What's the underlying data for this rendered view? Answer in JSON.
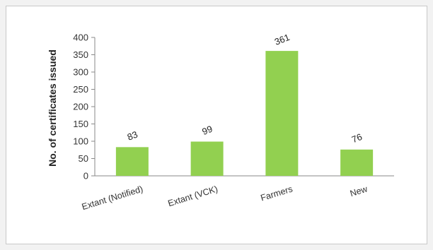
{
  "chart_data": {
    "type": "bar",
    "title": "",
    "xlabel": "",
    "ylabel": "No. of certificates issued",
    "categories": [
      "Extant (Notified)",
      "Extant (VCK)",
      "Farmers",
      "New"
    ],
    "values": [
      83,
      99,
      361,
      76
    ],
    "ylim": [
      0,
      400
    ],
    "yticks": [
      0,
      50,
      100,
      150,
      200,
      250,
      300,
      350,
      400
    ],
    "grid": false,
    "legend": "none",
    "bar_color": "#92d050",
    "data_labels": [
      "83",
      "99",
      "361",
      "76"
    ]
  }
}
